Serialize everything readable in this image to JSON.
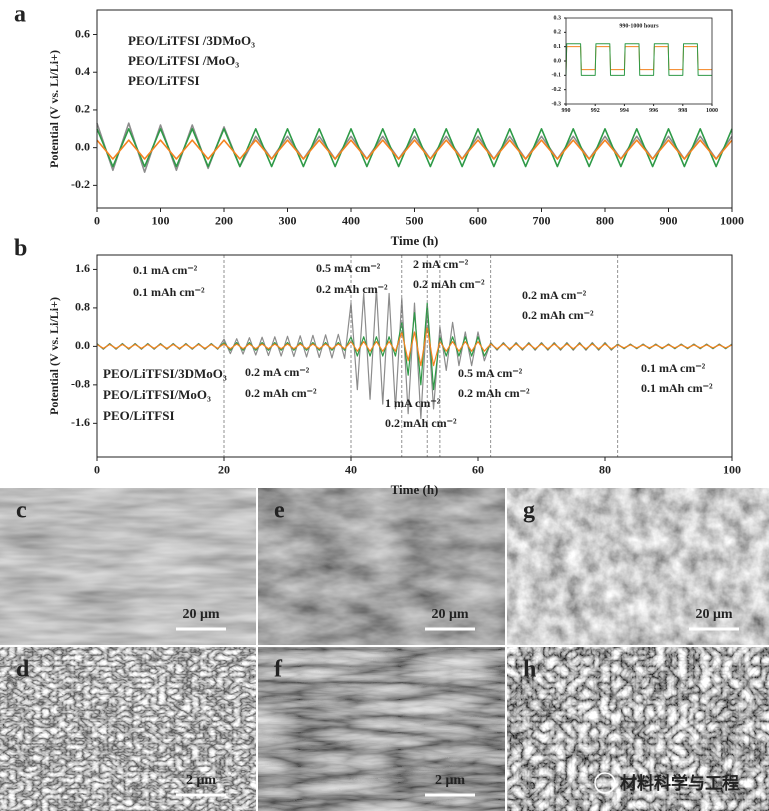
{
  "chart_data": [
    {
      "type": "line",
      "panel_label": "a",
      "xlabel": "Time (h)",
      "ylabel": "Potential (V vs. Li/Li+)",
      "x": [
        0,
        25,
        50,
        75,
        100,
        125,
        150,
        175,
        200,
        225,
        250,
        275,
        300,
        325,
        350,
        375,
        400,
        425,
        450,
        475,
        500,
        525,
        550,
        575,
        600,
        625,
        650,
        675,
        700,
        725,
        750,
        775,
        800,
        825,
        850,
        875,
        900,
        925,
        950,
        975,
        1000
      ],
      "series": [
        {
          "name": "PEO/LiTFSI /3DMoO₃",
          "color": "#f5821f",
          "values": [
            0.04,
            -0.06,
            0.04,
            -0.06,
            0.04,
            -0.06,
            0.04,
            -0.06,
            0.04,
            -0.06,
            0.04,
            -0.06,
            0.04,
            -0.06,
            0.04,
            -0.06,
            0.04,
            -0.06,
            0.04,
            -0.06,
            0.04,
            -0.06,
            0.04,
            -0.06,
            0.04,
            -0.06,
            0.04,
            -0.06,
            0.04,
            -0.06,
            0.04,
            -0.06,
            0.04,
            -0.06,
            0.04,
            -0.06,
            0.04,
            -0.06,
            0.04,
            -0.06,
            0.04
          ]
        },
        {
          "name": "PEO/LiTFSI /MoO₃",
          "color": "#2e9a47",
          "values": [
            0.1,
            -0.1,
            0.1,
            -0.1,
            0.1,
            -0.1,
            0.1,
            -0.1,
            0.1,
            -0.1,
            0.1,
            -0.1,
            0.1,
            -0.1,
            0.1,
            -0.1,
            0.1,
            -0.1,
            0.1,
            -0.1,
            0.1,
            -0.1,
            0.1,
            -0.1,
            0.1,
            -0.1,
            0.1,
            -0.1,
            0.1,
            -0.1,
            0.1,
            -0.1,
            0.1,
            -0.1,
            0.1,
            -0.1,
            0.1,
            -0.1,
            0.1,
            -0.1,
            0.1
          ]
        },
        {
          "name": "PEO/LiTFSI",
          "color": "#8c8c8c",
          "values": [
            0.13,
            -0.12,
            0.13,
            -0.13,
            0.12,
            -0.12,
            0.12,
            -0.11,
            0.11,
            -0.1,
            0.06,
            -0.06,
            0.06,
            -0.06,
            0.06,
            -0.06,
            0.06,
            -0.06,
            0.06,
            -0.06,
            0.06,
            -0.06,
            0.06,
            -0.06,
            0.06,
            -0.06,
            0.06,
            -0.06,
            0.06,
            -0.06,
            0.06,
            -0.06,
            0.06,
            -0.06,
            0.06,
            -0.06,
            0.06,
            -0.06,
            0.06,
            -0.06,
            0.06
          ]
        }
      ],
      "xlim": [
        0,
        1000
      ],
      "ylim": [
        -0.32,
        0.73
      ],
      "xticks": [
        0,
        100,
        200,
        300,
        400,
        500,
        600,
        700,
        800,
        900,
        1000
      ],
      "yticks": [
        -0.2,
        {
          "value": 0,
          "label": "0.0"
        },
        0.2,
        0.4,
        0.6
      ],
      "legend": "upper left"
    },
    {
      "type": "line",
      "title": "990-1000 hours",
      "x": [
        990,
        990.05,
        991,
        991.05,
        992,
        992.05,
        993,
        993.05,
        994,
        994.05,
        995,
        995.05,
        996,
        996.05,
        997,
        997.05,
        998,
        998.05,
        999,
        999.05,
        1000
      ],
      "series": [
        {
          "color": "#2e9a47",
          "values": [
            -0.1,
            0.12,
            0.12,
            -0.1,
            -0.1,
            0.12,
            0.12,
            -0.1,
            -0.1,
            0.12,
            0.12,
            -0.1,
            -0.1,
            0.12,
            0.12,
            -0.1,
            -0.1,
            0.12,
            0.12,
            -0.1,
            -0.1
          ]
        },
        {
          "color": "#f5821f",
          "values": [
            -0.06,
            0.1,
            0.1,
            -0.06,
            -0.06,
            0.1,
            0.1,
            -0.06,
            -0.06,
            0.1,
            0.1,
            -0.06,
            -0.06,
            0.1,
            0.1,
            -0.06,
            -0.06,
            0.1,
            0.1,
            -0.06,
            -0.06
          ]
        }
      ],
      "xlim": [
        990,
        1000
      ],
      "ylim": [
        -0.3,
        0.3
      ],
      "xticks": [
        990,
        992,
        994,
        996,
        998,
        1000
      ],
      "yticks": [
        -0.3,
        -0.2,
        -0.1,
        {
          "value": 0,
          "label": "0.0"
        },
        0.1,
        0.2,
        0.3
      ]
    },
    {
      "type": "line",
      "panel_label": "b",
      "xlabel": "Time (h)",
      "ylabel": "Potential (V vs. Li/Li+)",
      "x": [
        0,
        1,
        2,
        3,
        4,
        5,
        6,
        7,
        8,
        9,
        10,
        11,
        12,
        13,
        14,
        15,
        16,
        17,
        18,
        19,
        20,
        21,
        22,
        23,
        24,
        25,
        26,
        27,
        28,
        29,
        30,
        31,
        32,
        33,
        34,
        35,
        36,
        37,
        38,
        39,
        40,
        41,
        42,
        43,
        44,
        45,
        46,
        47,
        48,
        49,
        50,
        51,
        52,
        53,
        54,
        55,
        56,
        57,
        58,
        59,
        60,
        61,
        62,
        63,
        64,
        65,
        66,
        67,
        68,
        69,
        70,
        71,
        72,
        73,
        74,
        75,
        76,
        77,
        78,
        79,
        80,
        81,
        82,
        83,
        84,
        85,
        86,
        87,
        88,
        89,
        90,
        91,
        92,
        93,
        94,
        95,
        96,
        97,
        98,
        99,
        100
      ],
      "series": [
        {
          "name": "PEO/LiTFSI/3DMoO₃",
          "color": "#f5821f",
          "values": [
            0.04,
            -0.04,
            0.04,
            -0.04,
            0.04,
            -0.04,
            0.04,
            -0.04,
            0.04,
            -0.04,
            0.04,
            -0.04,
            0.04,
            -0.04,
            0.04,
            -0.04,
            0.04,
            -0.04,
            0.04,
            -0.04,
            0.05,
            -0.05,
            0.05,
            -0.05,
            0.05,
            -0.05,
            0.05,
            -0.05,
            0.05,
            -0.05,
            0.05,
            -0.05,
            0.05,
            -0.05,
            0.05,
            -0.05,
            0.05,
            -0.05,
            0.05,
            -0.05,
            0.1,
            -0.1,
            0.1,
            -0.1,
            0.1,
            -0.1,
            0.1,
            -0.1,
            0.3,
            -0.3,
            0.3,
            -0.4,
            0.4,
            -0.4,
            0.1,
            -0.1,
            0.1,
            -0.1,
            0.1,
            -0.1,
            0.1,
            -0.1,
            0.05,
            -0.05,
            0.05,
            -0.05,
            0.05,
            -0.05,
            0.05,
            -0.05,
            0.05,
            -0.05,
            0.05,
            -0.05,
            0.05,
            -0.05,
            0.05,
            -0.05,
            0.05,
            -0.05,
            0.05,
            -0.05,
            0.03,
            -0.03,
            0.03,
            -0.03,
            0.03,
            -0.03,
            0.03,
            -0.03,
            0.03,
            -0.03,
            0.03,
            -0.03,
            0.03,
            -0.03,
            0.03,
            -0.03,
            0.03,
            -0.03,
            0.03
          ]
        },
        {
          "name": "PEO/LiTFSI/MoO₃",
          "color": "#2e9a47",
          "values": [
            0.05,
            -0.05,
            0.05,
            -0.05,
            0.05,
            -0.05,
            0.05,
            -0.05,
            0.05,
            -0.05,
            0.05,
            -0.05,
            0.05,
            -0.05,
            0.05,
            -0.05,
            0.05,
            -0.05,
            0.05,
            -0.05,
            0.08,
            -0.08,
            0.08,
            -0.08,
            0.08,
            -0.08,
            0.08,
            -0.08,
            0.08,
            -0.08,
            0.08,
            -0.08,
            0.08,
            -0.08,
            0.08,
            -0.08,
            0.08,
            -0.08,
            0.08,
            -0.08,
            0.2,
            -0.2,
            0.2,
            -0.2,
            0.2,
            -0.2,
            0.2,
            -0.2,
            0.5,
            -0.6,
            0.7,
            -0.8,
            0.9,
            -0.9,
            0.2,
            -0.2,
            0.2,
            -0.2,
            0.2,
            -0.2,
            0.2,
            -0.2,
            0.06,
            -0.06,
            0.06,
            -0.06,
            0.06,
            -0.06,
            0.06,
            -0.06,
            0.06,
            -0.06,
            0.06,
            -0.06,
            0.06,
            -0.06,
            0.06,
            -0.06,
            0.06,
            -0.06,
            0.06,
            -0.06,
            0.04,
            -0.04,
            0.04,
            -0.04,
            0.04,
            -0.04,
            0.04,
            -0.04,
            0.04,
            -0.04,
            0.04,
            -0.04,
            0.04,
            -0.04,
            0.04,
            -0.04,
            0.04,
            -0.04,
            0.04
          ]
        },
        {
          "name": "PEO/LiTFSI",
          "color": "#8c8c8c",
          "values": [
            0.06,
            -0.06,
            0.06,
            -0.06,
            0.06,
            -0.06,
            0.06,
            -0.06,
            0.06,
            -0.06,
            0.06,
            -0.06,
            0.06,
            -0.06,
            0.06,
            -0.06,
            0.06,
            -0.06,
            0.06,
            -0.06,
            0.15,
            -0.15,
            0.16,
            -0.16,
            0.18,
            -0.18,
            0.19,
            -0.19,
            0.2,
            -0.2,
            0.21,
            -0.21,
            0.22,
            -0.22,
            0.23,
            -0.23,
            0.24,
            -0.24,
            0.25,
            -0.25,
            0.9,
            -0.9,
            1.1,
            -1.1,
            1.2,
            -1.2,
            1.1,
            -1.3,
            1.0,
            -1.4,
            0.9,
            -1.5,
            0.8,
            -1.3,
            0.4,
            -0.5,
            0.5,
            -0.4,
            0.3,
            -0.4,
            0.3,
            -0.3,
            0.08,
            -0.08,
            0.08,
            -0.08,
            0.08,
            -0.08,
            0.08,
            -0.08,
            0.08,
            -0.08,
            0.08,
            -0.08,
            0.08,
            -0.08,
            0.08,
            -0.08,
            0.08,
            -0.08,
            0.08,
            -0.08,
            0.05,
            -0.05,
            0.05,
            -0.05,
            0.05,
            -0.05,
            0.05,
            -0.05,
            0.05,
            -0.05,
            0.05,
            -0.05,
            0.05,
            -0.05,
            0.05,
            -0.05,
            0.05,
            -0.05,
            0.05
          ]
        }
      ],
      "xlim": [
        0,
        100
      ],
      "ylim": [
        -2.3,
        1.9
      ],
      "xticks": [
        0,
        20,
        40,
        60,
        80,
        100
      ],
      "yticks": [
        -1.6,
        -0.8,
        {
          "value": 0,
          "label": "0.0"
        },
        0.8,
        1.6
      ],
      "vlines": [
        20,
        40,
        48,
        52,
        54,
        62,
        82
      ],
      "annotations": [
        "0.1 mA cm⁻²",
        "0.1 mAh cm⁻²",
        "0.2 mA cm⁻²",
        "0.2 mAh cm⁻²",
        "0.5 mA cm⁻²",
        "0.2 mAh cm⁻²",
        "1 mA cm⁻²",
        "0.2 mAh cm⁻²",
        "2 mA cm⁻²",
        "0.2 mAh cm⁻²",
        "0.5 mA cm⁻²",
        "0.2 mAh cm⁻²",
        "0.2 mA cm⁻²",
        "0.2 mAh cm⁻²",
        "0.1 mA cm⁻²",
        "0.1 mAh cm⁻²"
      ],
      "legend": "lower left"
    }
  ],
  "images": [
    {
      "label": "c",
      "scale_bar": "20 μm"
    },
    {
      "label": "e",
      "scale_bar": "20 μm"
    },
    {
      "label": "g",
      "scale_bar": "20 μm"
    },
    {
      "label": "d",
      "scale_bar": "2 μm"
    },
    {
      "label": "f",
      "scale_bar": "2 μm"
    },
    {
      "label": "h"
    }
  ],
  "watermark": "材料科学与工程"
}
